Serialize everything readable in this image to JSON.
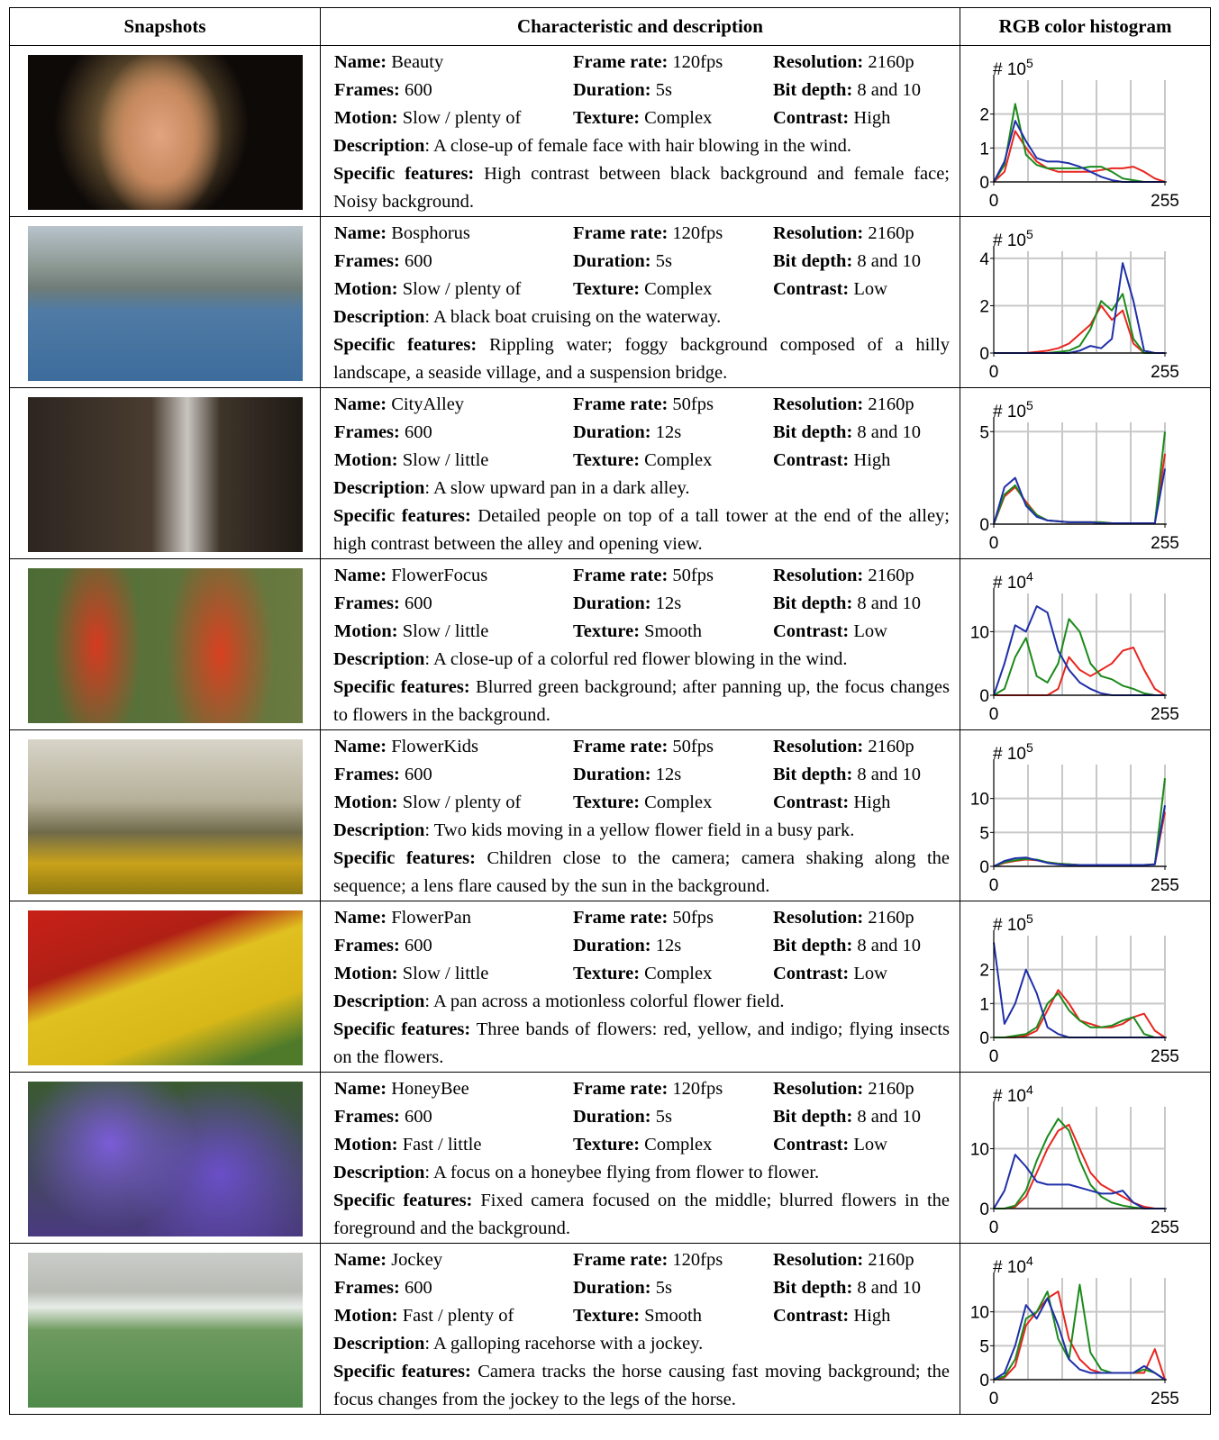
{
  "header": {
    "columns": [
      "Snapshots",
      "Characteristic and description",
      "RGB color histogram"
    ]
  },
  "field_labels": {
    "name": "Name:",
    "frame_rate": "Frame rate:",
    "resolution": "Resolution:",
    "frames": "Frames:",
    "duration": "Duration:",
    "bit_depth": "Bit depth:",
    "motion": "Motion:",
    "texture": "Texture:",
    "contrast": "Contrast:",
    "description": "Description",
    "specific_features": "Specific features:"
  },
  "histogram_x": [
    0,
    16,
    32,
    48,
    64,
    80,
    96,
    112,
    128,
    144,
    160,
    176,
    192,
    208,
    224,
    240,
    255
  ],
  "histogram_xgrid": [
    51,
    102,
    153,
    204,
    255
  ],
  "histogram_xlim": [
    0,
    255
  ],
  "histogram_xticks": [
    0,
    255
  ],
  "histogram_y_label": "# 10",
  "rows": [
    {
      "name": "Beauty",
      "frame_rate": "120fps",
      "resolution": "2160p",
      "frames": "600",
      "duration": "5s",
      "bit_depth": "8 and 10",
      "motion": "Slow / plenty of",
      "texture": "Complex",
      "contrast": "High",
      "description": ": A close-up of female face with hair blowing in the wind.",
      "specific_features": "High contrast between black background and female face; Noisy background.",
      "histogram": {
        "exponent": "5",
        "ylim": [
          0,
          3
        ],
        "yticks": [
          0,
          1,
          2
        ],
        "series": [
          {
            "color": "#e8251f",
            "values": [
              0,
              0.3,
              1.5,
              1.0,
              0.6,
              0.4,
              0.3,
              0.3,
              0.3,
              0.3,
              0.35,
              0.4,
              0.4,
              0.45,
              0.3,
              0.1,
              0
            ]
          },
          {
            "color": "#1b8a1b",
            "values": [
              0,
              0.5,
              2.3,
              0.8,
              0.5,
              0.4,
              0.4,
              0.4,
              0.4,
              0.45,
              0.45,
              0.3,
              0.1,
              0.05,
              0,
              0,
              0
            ]
          },
          {
            "color": "#1f2fa8",
            "values": [
              0,
              0.6,
              1.8,
              1.2,
              0.7,
              0.6,
              0.6,
              0.55,
              0.45,
              0.3,
              0.15,
              0.05,
              0,
              0,
              0,
              0,
              0
            ]
          }
        ]
      }
    },
    {
      "name": "Bosphorus",
      "frame_rate": "120fps",
      "resolution": "2160p",
      "frames": "600",
      "duration": "5s",
      "bit_depth": "8 and 10",
      "motion": "Slow / plenty of",
      "texture": "Complex",
      "contrast": "Low",
      "description": ": A black boat cruising on the waterway.",
      "specific_features": "Rippling water; foggy background composed of a hilly landscape, a seaside village, and a suspension bridge.",
      "histogram": {
        "exponent": "5",
        "ylim": [
          0,
          4.3
        ],
        "yticks": [
          0,
          2,
          4
        ],
        "series": [
          {
            "color": "#e8251f",
            "values": [
              0,
              0,
              0,
              0,
              0.05,
              0.1,
              0.2,
              0.4,
              0.8,
              1.2,
              2.0,
              1.4,
              1.8,
              0.4,
              0,
              0,
              0
            ]
          },
          {
            "color": "#1b8a1b",
            "values": [
              0,
              0,
              0,
              0,
              0,
              0,
              0.05,
              0.1,
              0.3,
              1.0,
              2.2,
              1.8,
              2.5,
              0.6,
              0,
              0,
              0
            ]
          },
          {
            "color": "#1f2fa8",
            "values": [
              0,
              0,
              0,
              0,
              0,
              0,
              0,
              0,
              0.1,
              0.3,
              0.2,
              0.6,
              3.8,
              2.2,
              0.1,
              0,
              0
            ]
          }
        ]
      }
    },
    {
      "name": "CityAlley",
      "frame_rate": "50fps",
      "resolution": "2160p",
      "frames": "600",
      "duration": "12s",
      "bit_depth": "8 and 10",
      "motion": "Slow / little",
      "texture": "Complex",
      "contrast": "High",
      "description": ": A slow upward pan in a dark alley.",
      "specific_features": "Detailed people on top of a tall tower at the end of the alley; high contrast between the alley and opening view.",
      "histogram": {
        "exponent": "5",
        "ylim": [
          0,
          5.5
        ],
        "yticks": [
          0,
          5
        ],
        "series": [
          {
            "color": "#e8251f",
            "values": [
              0,
              1.5,
              2.0,
              1.2,
              0.5,
              0.2,
              0.15,
              0.1,
              0.1,
              0.1,
              0.1,
              0.05,
              0.05,
              0.05,
              0.05,
              0.05,
              3.8
            ]
          },
          {
            "color": "#1b8a1b",
            "values": [
              0,
              1.6,
              2.1,
              1.1,
              0.5,
              0.2,
              0.15,
              0.1,
              0.1,
              0.1,
              0.1,
              0.05,
              0.05,
              0.05,
              0.05,
              0.05,
              5.0
            ]
          },
          {
            "color": "#1f2fa8",
            "values": [
              0,
              2.0,
              2.5,
              1.0,
              0.4,
              0.2,
              0.15,
              0.1,
              0.1,
              0.1,
              0.05,
              0.05,
              0.05,
              0.05,
              0.05,
              0.05,
              3.0
            ]
          }
        ]
      }
    },
    {
      "name": "FlowerFocus",
      "frame_rate": "50fps",
      "resolution": "2160p",
      "frames": "600",
      "duration": "12s",
      "bit_depth": "8 and 10",
      "motion": "Slow / little",
      "texture": "Smooth",
      "contrast": "Low",
      "description": ": A close-up of a colorful red flower blowing in the wind.",
      "specific_features": "Blurred green background; after panning up, the focus changes to flowers in the background.",
      "histogram": {
        "exponent": "4",
        "ylim": [
          0,
          16
        ],
        "yticks": [
          0,
          10
        ],
        "series": [
          {
            "color": "#e8251f",
            "values": [
              0,
              0,
              0,
              0,
              0,
              0,
              1,
              6,
              4,
              3,
              4,
              5,
              7,
              7.5,
              4,
              1,
              0
            ]
          },
          {
            "color": "#1b8a1b",
            "values": [
              0,
              1,
              6,
              9,
              3,
              2,
              5,
              12,
              10,
              5,
              3,
              2.5,
              1.5,
              1,
              0.3,
              0,
              0
            ]
          },
          {
            "color": "#1f2fa8",
            "values": [
              0,
              5,
              11,
              10,
              14,
              13,
              7,
              4,
              2,
              1,
              0.3,
              0,
              0,
              0,
              0,
              0,
              0
            ]
          }
        ]
      }
    },
    {
      "name": "FlowerKids",
      "frame_rate": "50fps",
      "resolution": "2160p",
      "frames": "600",
      "duration": "12s",
      "bit_depth": "8 and 10",
      "motion": "Slow / plenty of",
      "texture": "Complex",
      "contrast": "High",
      "description": ": Two kids moving in a yellow flower field in a busy park.",
      "specific_features": "Children close to the camera; camera shaking along the sequence; a lens flare caused by the sun in the background.",
      "histogram": {
        "exponent": "5",
        "ylim": [
          0,
          15
        ],
        "yticks": [
          0,
          5,
          10
        ],
        "series": [
          {
            "color": "#e8251f",
            "values": [
              0,
              0.5,
              0.8,
              1.0,
              0.9,
              0.6,
              0.4,
              0.3,
              0.2,
              0.2,
              0.2,
              0.2,
              0.2,
              0.2,
              0.2,
              0.3,
              8
            ]
          },
          {
            "color": "#1b8a1b",
            "values": [
              0,
              0.6,
              0.9,
              1.1,
              1.0,
              0.6,
              0.4,
              0.3,
              0.2,
              0.2,
              0.2,
              0.2,
              0.2,
              0.2,
              0.2,
              0.3,
              13
            ]
          },
          {
            "color": "#1f2fa8",
            "values": [
              0,
              0.8,
              1.2,
              1.3,
              0.9,
              0.5,
              0.3,
              0.2,
              0.2,
              0.2,
              0.2,
              0.2,
              0.2,
              0.2,
              0.2,
              0.3,
              9
            ]
          }
        ]
      }
    },
    {
      "name": "FlowerPan",
      "frame_rate": "50fps",
      "resolution": "2160p",
      "frames": "600",
      "duration": "12s",
      "bit_depth": "8 and 10",
      "motion": "Slow / little",
      "texture": "Complex",
      "contrast": "Low",
      "description": ": A pan across a motionless colorful flower field.",
      "specific_features": "Three bands of flowers: red, yellow, and indigo; flying insects on the flowers.",
      "histogram": {
        "exponent": "5",
        "ylim": [
          0,
          3
        ],
        "yticks": [
          0,
          1,
          2
        ],
        "series": [
          {
            "color": "#e8251f",
            "values": [
              0,
              0,
              0,
              0.05,
              0.2,
              0.8,
              1.4,
              1.0,
              0.5,
              0.4,
              0.3,
              0.3,
              0.4,
              0.6,
              0.7,
              0.2,
              0
            ]
          },
          {
            "color": "#1b8a1b",
            "values": [
              0,
              0,
              0.05,
              0.1,
              0.3,
              1.0,
              1.3,
              0.8,
              0.5,
              0.3,
              0.3,
              0.35,
              0.5,
              0.6,
              0.1,
              0,
              0
            ]
          },
          {
            "color": "#1f2fa8",
            "values": [
              2.8,
              0.4,
              1.0,
              2.0,
              1.3,
              0.3,
              0.1,
              0,
              0,
              0,
              0,
              0,
              0,
              0,
              0,
              0,
              0
            ]
          }
        ]
      }
    },
    {
      "name": "HoneyBee",
      "frame_rate": "120fps",
      "resolution": "2160p",
      "frames": "600",
      "duration": "5s",
      "bit_depth": "8 and 10",
      "motion": "Fast / little",
      "texture": "Complex",
      "contrast": "Low",
      "description": ": A focus on a honeybee flying from flower to flower.",
      "specific_features": "Fixed camera focused on the middle; blurred flowers in the foreground and the background.",
      "histogram": {
        "exponent": "4",
        "ylim": [
          0,
          17
        ],
        "yticks": [
          0,
          10
        ],
        "series": [
          {
            "color": "#e8251f",
            "values": [
              0,
              0,
              0.3,
              2,
              6,
              10,
              13,
              14,
              10,
              6,
              4,
              3,
              2,
              1,
              0.3,
              0,
              0
            ]
          },
          {
            "color": "#1b8a1b",
            "values": [
              0,
              0,
              0.5,
              3,
              8,
              12,
              15,
              13,
              8,
              4,
              2,
              1,
              0.5,
              0.2,
              0,
              0,
              0
            ]
          },
          {
            "color": "#1f2fa8",
            "values": [
              0,
              3,
              9,
              7,
              4.5,
              4,
              4,
              4,
              3.5,
              3,
              2.5,
              2.5,
              3,
              1,
              0,
              0,
              0
            ]
          }
        ]
      }
    },
    {
      "name": "Jockey",
      "frame_rate": "120fps",
      "resolution": "2160p",
      "frames": "600",
      "duration": "5s",
      "bit_depth": "8 and 10",
      "motion": "Fast / plenty of",
      "texture": "Smooth",
      "contrast": "High",
      "description": ": A galloping racehorse with a jockey.",
      "specific_features": "Camera tracks the horse causing fast moving background; the focus changes from the jockey to the legs of the horse.",
      "histogram": {
        "exponent": "4",
        "ylim": [
          0,
          15
        ],
        "yticks": [
          0,
          5,
          10
        ],
        "series": [
          {
            "color": "#e8251f",
            "values": [
              0,
              0.3,
              2,
              8,
              10,
              12,
              13,
              6,
              3,
              1.5,
              1,
              1,
              1,
              1,
              1,
              4.5,
              0
            ]
          },
          {
            "color": "#1b8a1b",
            "values": [
              0,
              0.5,
              3,
              9,
              10,
              13,
              6,
              3,
              14,
              4,
              1.5,
              1,
              1,
              1,
              1.5,
              1,
              0
            ]
          },
          {
            "color": "#1f2fa8",
            "values": [
              0,
              1,
              5,
              11,
              9,
              12,
              8,
              3,
              1.5,
              1,
              1,
              1,
              1,
              1,
              2,
              1,
              0
            ]
          }
        ]
      }
    }
  ]
}
